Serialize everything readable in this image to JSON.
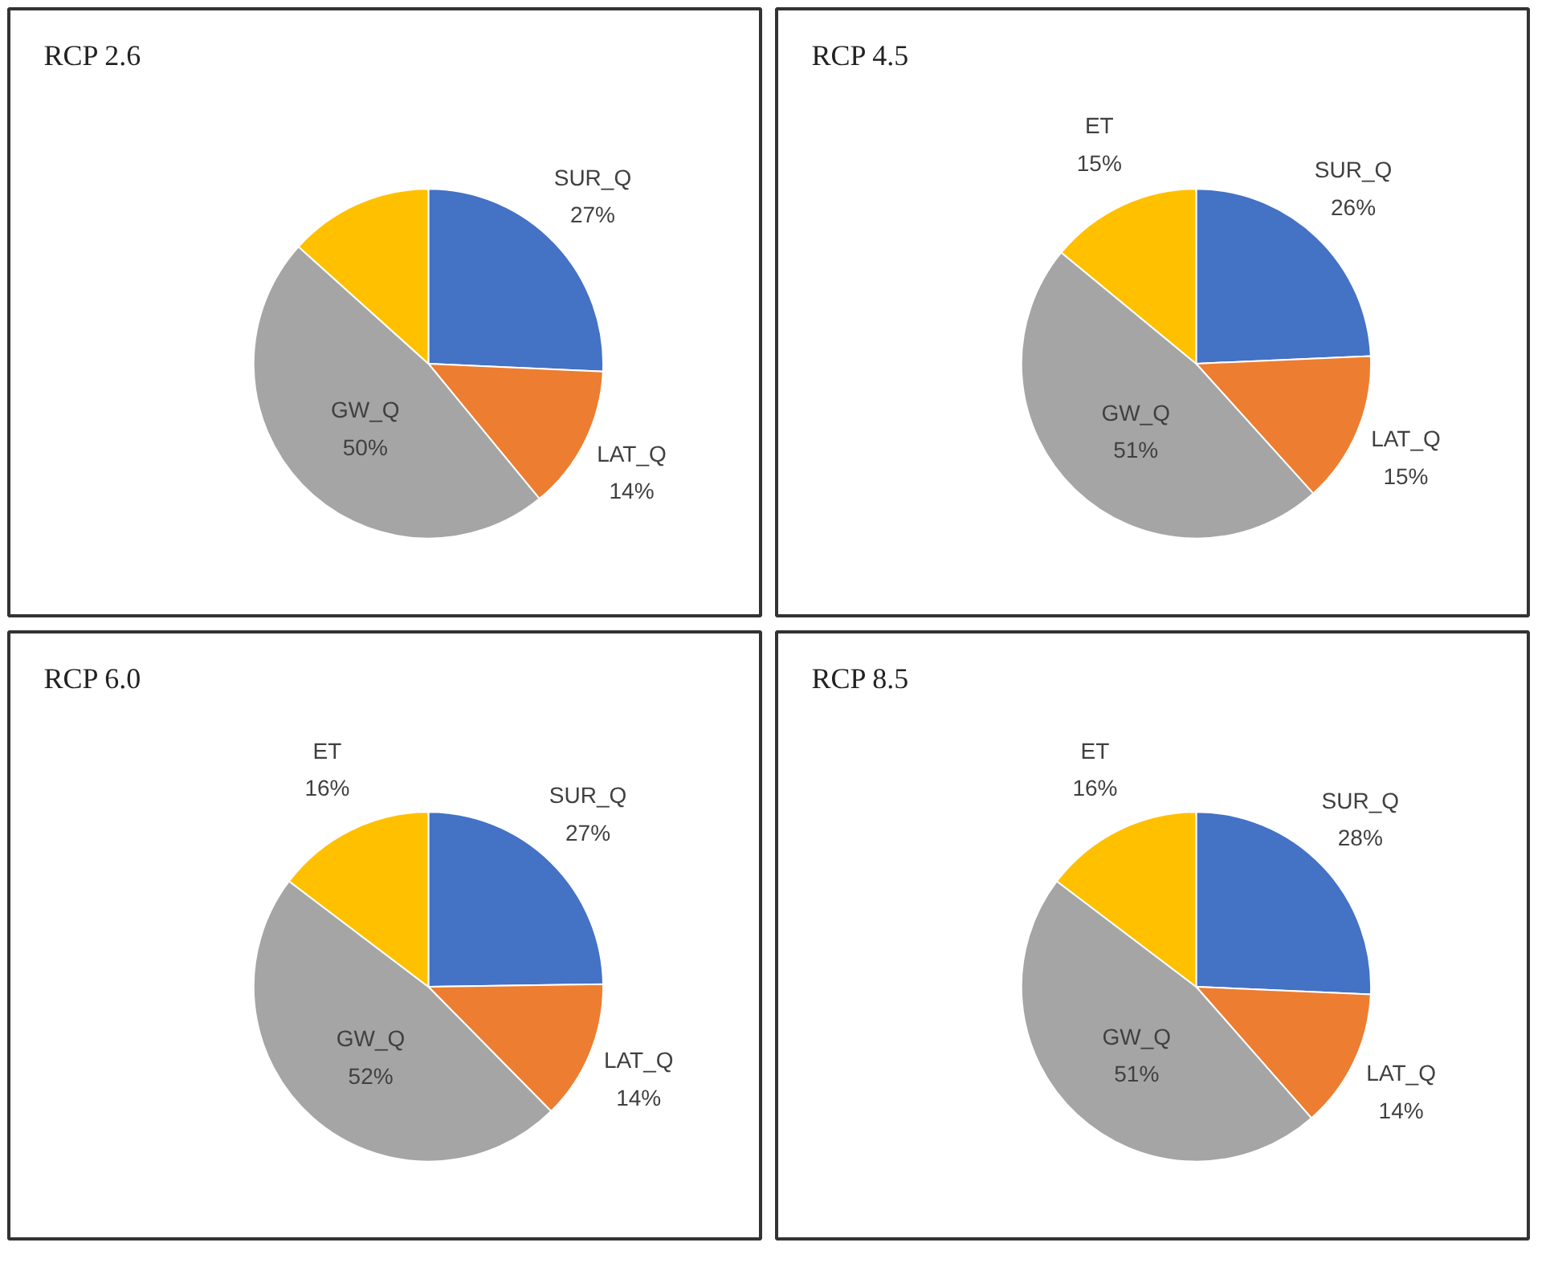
{
  "chart_data": [
    {
      "type": "pie",
      "title": "RCP 2.6",
      "categories": [
        "SUR_Q",
        "LAT_Q",
        "GW_Q",
        null
      ],
      "values": [
        27,
        14,
        50,
        14
      ],
      "colors": [
        "#4472c4",
        "#ed7d31",
        "#a5a5a5",
        "#ffc000"
      ],
      "value_labels": [
        "27%",
        "14%",
        "50%",
        null
      ]
    },
    {
      "type": "pie",
      "title": "RCP 4.5",
      "categories": [
        "SUR_Q",
        "LAT_Q",
        "GW_Q",
        "ET"
      ],
      "values": [
        26,
        15,
        51,
        15
      ],
      "colors": [
        "#4472c4",
        "#ed7d31",
        "#a5a5a5",
        "#ffc000"
      ],
      "value_labels": [
        "26%",
        "15%",
        "51%",
        "15%"
      ]
    },
    {
      "type": "pie",
      "title": "RCP 6.0",
      "categories": [
        "SUR_Q",
        "LAT_Q",
        "GW_Q",
        "ET"
      ],
      "values": [
        27,
        14,
        52,
        16
      ],
      "colors": [
        "#4472c4",
        "#ed7d31",
        "#a5a5a5",
        "#ffc000"
      ],
      "value_labels": [
        "27%",
        "14%",
        "52%",
        "16%"
      ]
    },
    {
      "type": "pie",
      "title": "RCP 8.5",
      "categories": [
        "SUR_Q",
        "LAT_Q",
        "GW_Q",
        "ET"
      ],
      "values": [
        28,
        14,
        51,
        16
      ],
      "colors": [
        "#4472c4",
        "#ed7d31",
        "#a5a5a5",
        "#ffc000"
      ],
      "value_labels": [
        "28%",
        "14%",
        "51%",
        "16%"
      ]
    }
  ]
}
